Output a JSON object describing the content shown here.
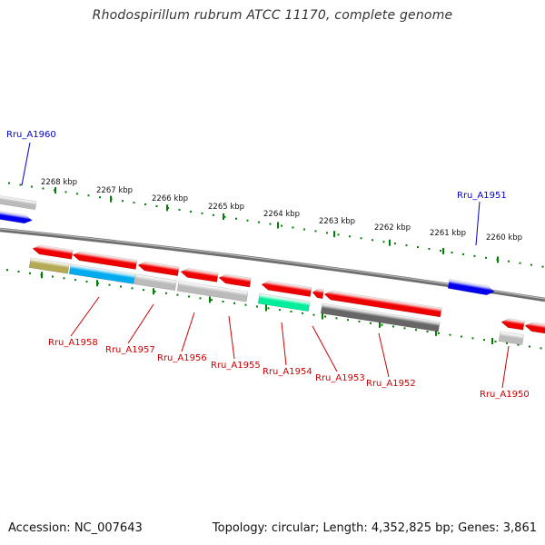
{
  "title": "Rhodospirillum rubrum ATCC 11170, complete genome",
  "footer": {
    "accession": "Accession: NC_007643",
    "summary": "Topology: circular; Length: 4,352,825 bp; Genes: 3,861"
  },
  "colors": {
    "forward_label": "#0000cc",
    "reverse_label": "#cc0000",
    "backbone": "#888888",
    "tick": "#008000"
  },
  "scale_labels": [
    "2268 kbp",
    "2267 kbp",
    "2266 kbp",
    "2265 kbp",
    "2264 kbp",
    "2263 kbp",
    "2262 kbp",
    "2261 kbp",
    "2260 kbp"
  ],
  "forward_genes": [
    {
      "label": "Rru_A1960",
      "color": "#0000ee"
    },
    {
      "label": "Rru_A1951",
      "color": "#0000ee"
    }
  ],
  "reverse_genes": [
    {
      "label": "Rru_A1958",
      "color": "#ee0000"
    },
    {
      "label": "Rru_A1957",
      "color": "#ee0000"
    },
    {
      "label": "Rru_A1956",
      "color": "#ee0000"
    },
    {
      "label": "Rru_A1955",
      "color": "#ee0000"
    },
    {
      "label": "Rru_A1954",
      "color": "#ee0000"
    },
    {
      "label": "Rru_A1953",
      "color": "#ee0000"
    },
    {
      "label": "Rru_A1952",
      "color": "#ee0000"
    },
    {
      "label": "Rru_A1950",
      "color": "#ee0000"
    }
  ],
  "feature_colors": [
    "#b4aa55",
    "#00aaee",
    "#bbbbbb",
    "#00ee99",
    "#666666"
  ]
}
